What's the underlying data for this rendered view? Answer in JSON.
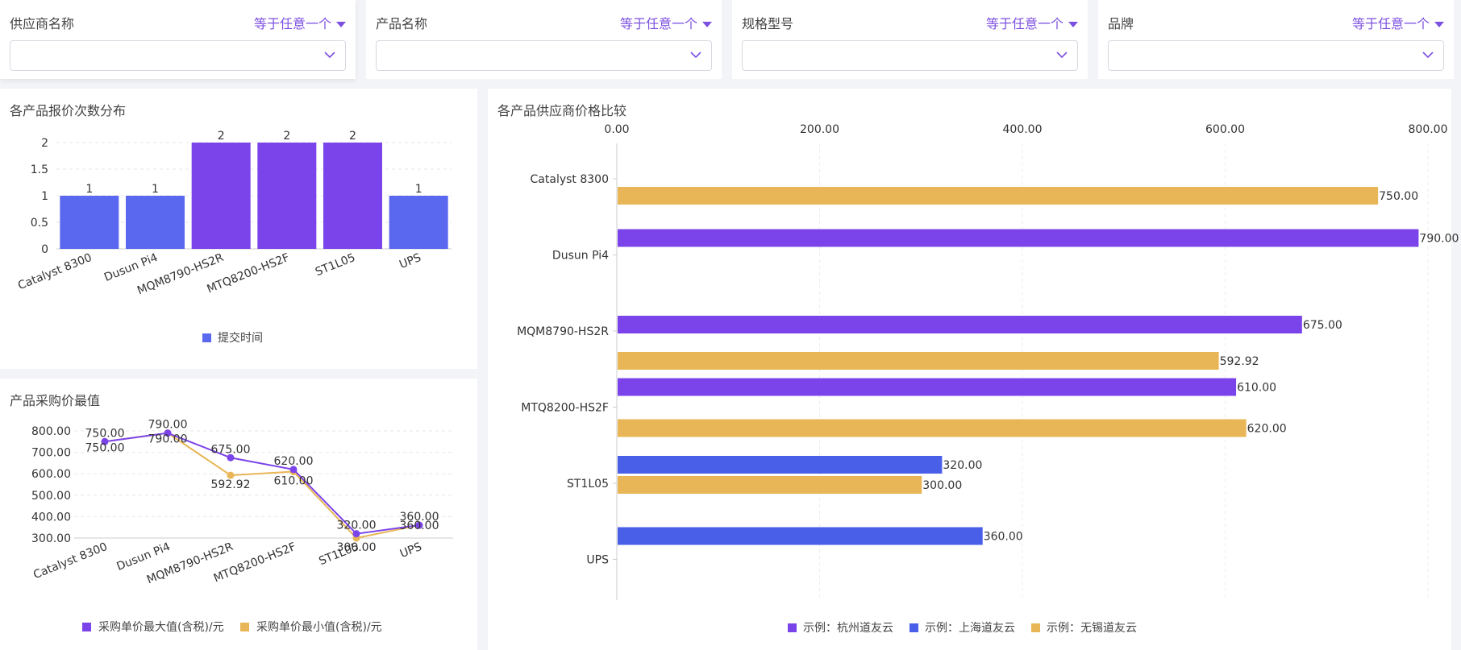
{
  "filters": [
    {
      "label": "供应商名称",
      "operator": "等于任意一个",
      "value": ""
    },
    {
      "label": "产品名称",
      "operator": "等于任意一个",
      "value": ""
    },
    {
      "label": "规格型号",
      "operator": "等于任意一个",
      "value": ""
    },
    {
      "label": "品牌",
      "operator": "等于任意一个",
      "value": ""
    }
  ],
  "colors": {
    "purple": "#7b44ea",
    "blue": "#5a68f0",
    "blue2": "#4a5fe8",
    "gold": "#e8b656"
  },
  "chart_data": [
    {
      "id": "quote-count",
      "type": "bar",
      "title": "各产品报价次数分布",
      "categories": [
        "Catalyst 8300",
        "Dusun Pi4",
        "MQM8790-HS2R",
        "MTQ8200-HS2F",
        "ST1L05",
        "UPS"
      ],
      "values": [
        1,
        1,
        2,
        2,
        2,
        1
      ],
      "series_name": "提交时间",
      "ylim": [
        0,
        2
      ],
      "yticks": [
        "0",
        "0.5",
        "1",
        "1.5",
        "2"
      ],
      "legend": "bottom-center",
      "grid": true
    },
    {
      "id": "price-extremes",
      "type": "line",
      "title": "产品采购价最值",
      "categories": [
        "Catalyst 8300",
        "Dusun Pi4",
        "MQM8790-HS2R",
        "MTQ8200-HS2F",
        "ST1L05",
        "UPS"
      ],
      "series": [
        {
          "name": "采购单价最大值(含税)/元",
          "values": [
            750,
            790,
            675,
            620,
            320,
            360
          ],
          "labels": [
            "750.00",
            "790.00",
            "675.00",
            "620.00",
            "320.00",
            "360.00"
          ]
        },
        {
          "name": "采购单价最小值(含税)/元",
          "values": [
            750,
            790,
            592.92,
            610,
            300,
            360
          ],
          "labels": [
            "750.00",
            "790.00",
            "592.92",
            "610.00",
            "300.00",
            "360.00"
          ]
        }
      ],
      "ylim": [
        300,
        800
      ],
      "yticks": [
        "300.00",
        "400.00",
        "500.00",
        "600.00",
        "700.00",
        "800.00"
      ],
      "legend": "bottom-center",
      "grid": true
    },
    {
      "id": "supplier-compare",
      "type": "bar",
      "orientation": "horizontal",
      "title": "各产品供应商价格比较",
      "categories": [
        "Catalyst 8300",
        "Dusun Pi4",
        "MQM8790-HS2R",
        "MTQ8200-HS2F",
        "ST1L05",
        "UPS"
      ],
      "series": [
        {
          "name": "示例：杭州道友云",
          "color": "purple",
          "values": [
            null,
            790,
            675,
            610,
            null,
            null
          ]
        },
        {
          "name": "示例：上海道友云",
          "color": "blue2",
          "values": [
            null,
            null,
            null,
            null,
            320,
            360
          ]
        },
        {
          "name": "示例：无锡道友云",
          "color": "gold",
          "values": [
            750,
            null,
            592.92,
            620,
            300,
            null
          ]
        }
      ],
      "bar_labels": [
        {
          "category": "Catalyst 8300",
          "series": "示例：无锡道友云",
          "text": "750.00"
        },
        {
          "category": "Dusun Pi4",
          "series": "示例：杭州道友云",
          "text": "790.00"
        },
        {
          "category": "MQM8790-HS2R",
          "series": "示例：杭州道友云",
          "text": "675.00"
        },
        {
          "category": "MQM8790-HS2R",
          "series": "示例：无锡道友云",
          "text": "592.92"
        },
        {
          "category": "MTQ8200-HS2F",
          "series": "示例：杭州道友云",
          "text": "610.00"
        },
        {
          "category": "MTQ8200-HS2F",
          "series": "示例：无锡道友云",
          "text": "620.00"
        },
        {
          "category": "ST1L05",
          "series": "示例：上海道友云",
          "text": "320.00"
        },
        {
          "category": "ST1L05",
          "series": "示例：无锡道友云",
          "text": "300.00"
        },
        {
          "category": "UPS",
          "series": "示例：上海道友云",
          "text": "360.00"
        }
      ],
      "xlim": [
        0,
        800
      ],
      "xticks": [
        "0.00",
        "200.00",
        "400.00",
        "600.00",
        "800.00"
      ],
      "legend": "bottom-center",
      "grid": true
    }
  ]
}
